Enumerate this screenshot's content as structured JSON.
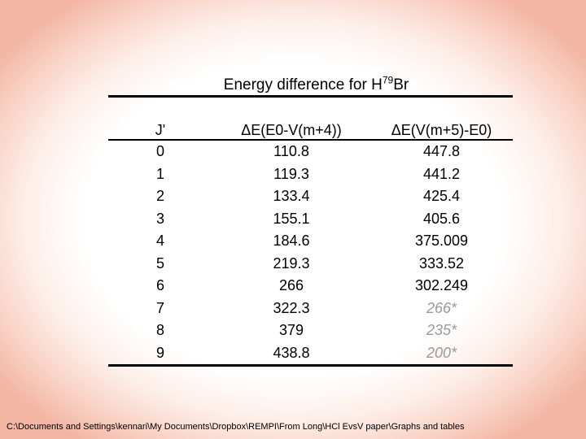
{
  "slide": {
    "title": {
      "prefix": "Energy difference for H",
      "superscript": "79",
      "suffix": "Br"
    },
    "table": {
      "headers": [
        "J'",
        "ΔE(E0-V(m+4))",
        "ΔE(V(m+5)-E0)"
      ],
      "rows": [
        {
          "j": "0",
          "e1": "110.8",
          "e2": "447.8",
          "estimated": false
        },
        {
          "j": "1",
          "e1": "119.3",
          "e2": "441.2",
          "estimated": false
        },
        {
          "j": "2",
          "e1": "133.4",
          "e2": "425.4",
          "estimated": false
        },
        {
          "j": "3",
          "e1": "155.1",
          "e2": "405.6",
          "estimated": false
        },
        {
          "j": "4",
          "e1": "184.6",
          "e2": "375.009",
          "estimated": false
        },
        {
          "j": "5",
          "e1": "219.3",
          "e2": "333.52",
          "estimated": false
        },
        {
          "j": "6",
          "e1": "266",
          "e2": "302.249",
          "estimated": false
        },
        {
          "j": "7",
          "e1": "322.3",
          "e2": "266*",
          "estimated": true
        },
        {
          "j": "8",
          "e1": "379",
          "e2": "235*",
          "estimated": true
        },
        {
          "j": "9",
          "e1": "438.8",
          "e2": "200*",
          "estimated": true
        }
      ]
    },
    "footer_path": "C:\\Documents and Settings\\kennari\\My Documents\\Dropbox\\REMPI\\From Long\\HCl EvsV paper\\Graphs and tables",
    "colors": {
      "text": "#000000",
      "estimated_value": "#999999",
      "rule": "#000000",
      "background_center": "#ffffff",
      "background_edge": "#f3b6a4"
    }
  }
}
